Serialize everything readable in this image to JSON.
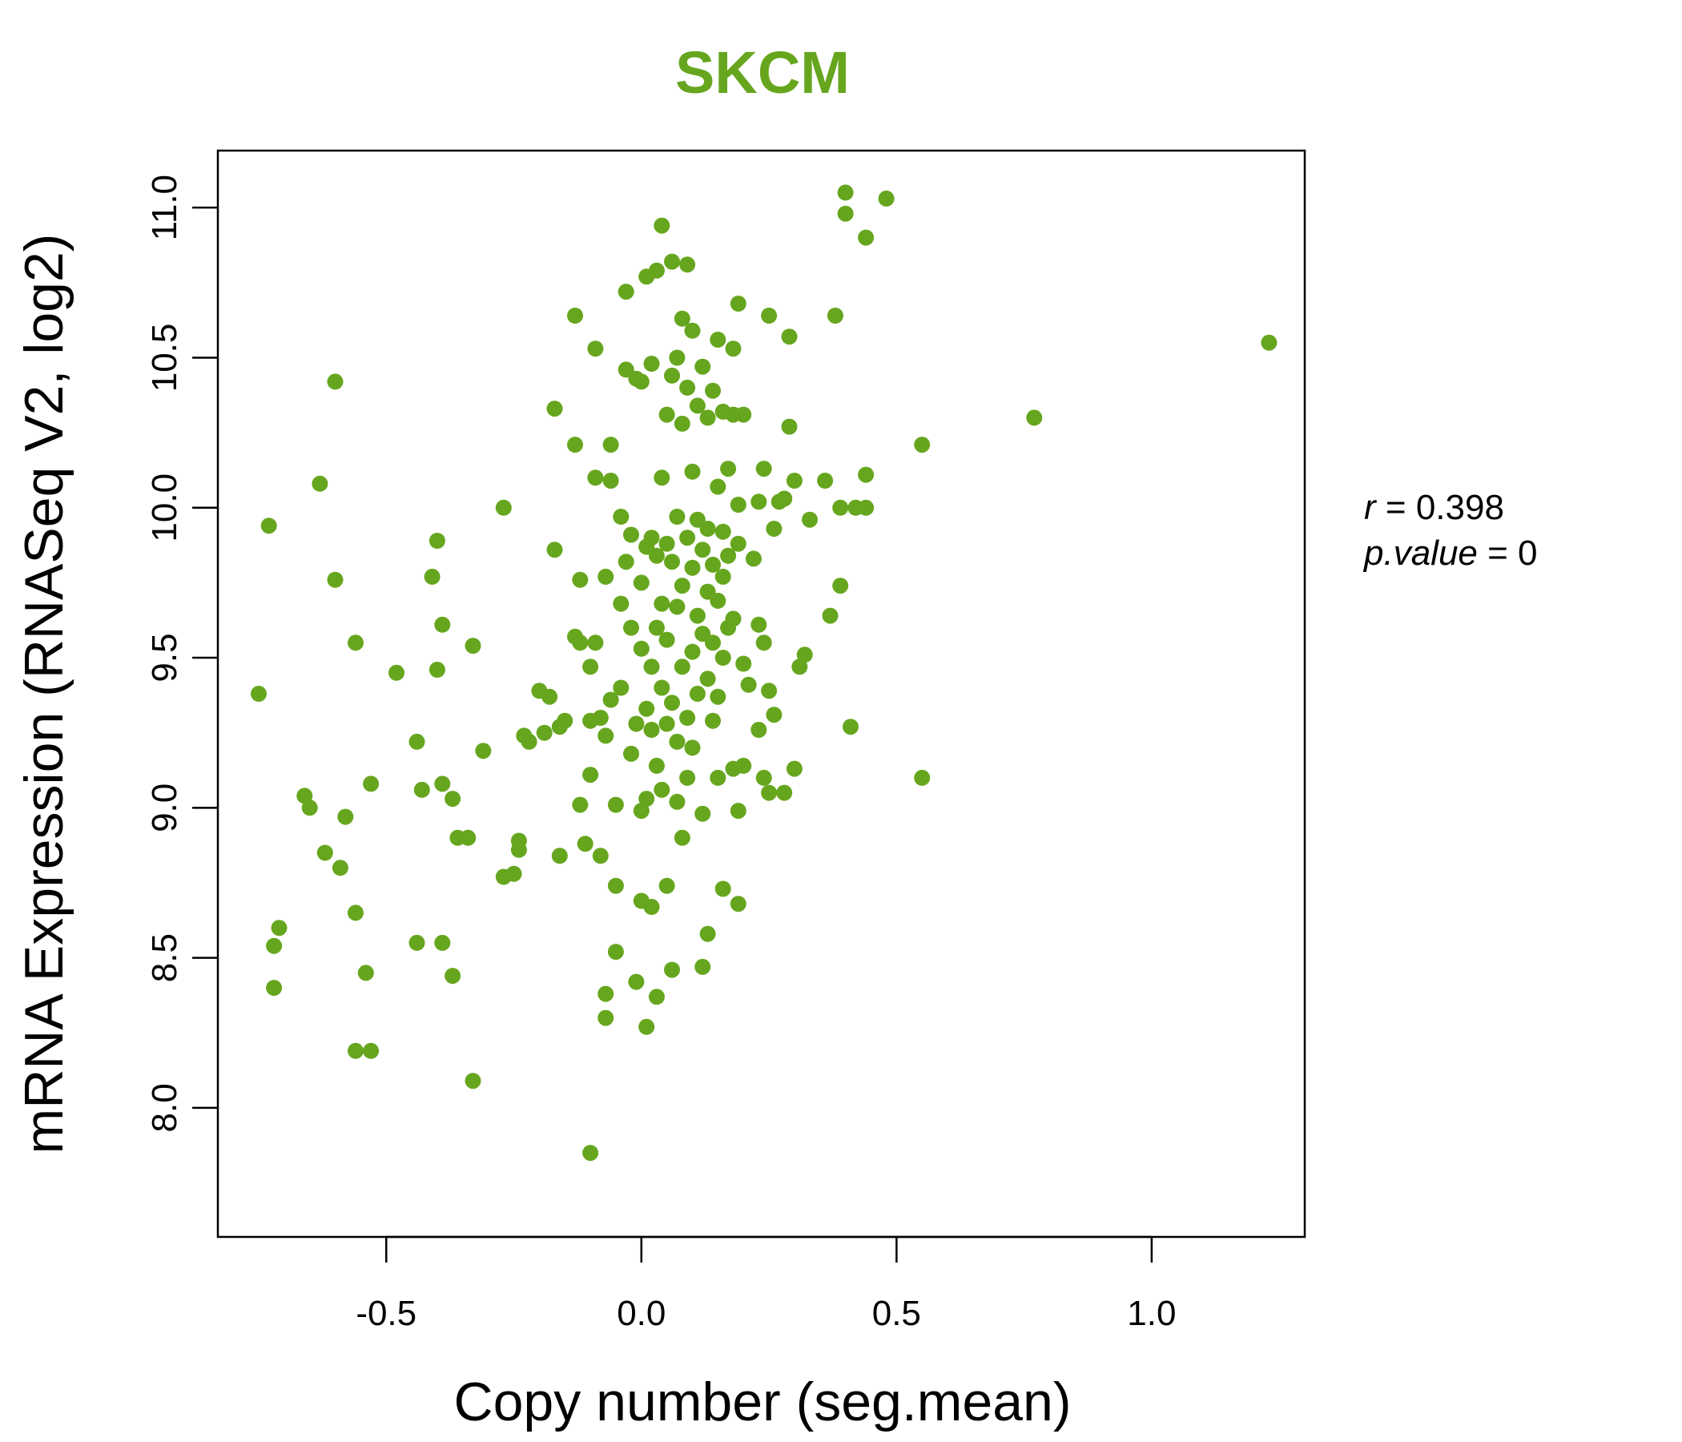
{
  "chart_data": {
    "type": "scatter",
    "title": "SKCM",
    "xlabel": "Copy number (seg.mean)",
    "ylabel": "mRNA Expression (RNASeq V2, log2)",
    "xlim": [
      -0.83,
      1.3
    ],
    "ylim": [
      7.57,
      11.19
    ],
    "x_ticks": [
      -0.5,
      0.0,
      0.5,
      1.0
    ],
    "x_tick_labels": [
      "-0.5",
      "0.0",
      "0.5",
      "1.0"
    ],
    "y_ticks": [
      8.0,
      8.5,
      9.0,
      9.5,
      10.0,
      10.5,
      11.0
    ],
    "y_tick_labels": [
      "8.0",
      "8.5",
      "9.0",
      "9.5",
      "10.0",
      "10.5",
      "11.0"
    ],
    "grid": false,
    "annotations": {
      "r_label": "r",
      "r_value": "0.398",
      "p_label": "p.value",
      "p_value": "0"
    },
    "colors": {
      "title": "#66a61e",
      "points": "#66a61e",
      "axis": "#000000"
    },
    "points": [
      [
        -0.75,
        9.38
      ],
      [
        -0.73,
        9.94
      ],
      [
        -0.72,
        8.54
      ],
      [
        -0.72,
        8.4
      ],
      [
        -0.71,
        8.6
      ],
      [
        -0.66,
        9.04
      ],
      [
        -0.65,
        9.0
      ],
      [
        -0.63,
        10.08
      ],
      [
        -0.62,
        8.85
      ],
      [
        -0.6,
        10.42
      ],
      [
        -0.6,
        9.76
      ],
      [
        -0.59,
        8.8
      ],
      [
        -0.58,
        8.97
      ],
      [
        -0.56,
        8.65
      ],
      [
        -0.56,
        9.55
      ],
      [
        -0.56,
        8.19
      ],
      [
        -0.54,
        8.45
      ],
      [
        -0.53,
        8.19
      ],
      [
        -0.53,
        9.08
      ],
      [
        -0.48,
        9.45
      ],
      [
        -0.44,
        9.22
      ],
      [
        -0.44,
        8.55
      ],
      [
        -0.43,
        9.06
      ],
      [
        -0.41,
        9.77
      ],
      [
        -0.4,
        9.89
      ],
      [
        -0.4,
        9.46
      ],
      [
        -0.39,
        9.61
      ],
      [
        -0.39,
        9.08
      ],
      [
        -0.39,
        8.55
      ],
      [
        -0.37,
        8.44
      ],
      [
        -0.37,
        9.03
      ],
      [
        -0.36,
        8.9
      ],
      [
        -0.34,
        8.9
      ],
      [
        -0.33,
        9.54
      ],
      [
        -0.33,
        8.09
      ],
      [
        -0.31,
        9.19
      ],
      [
        -0.27,
        10.0
      ],
      [
        -0.27,
        8.77
      ],
      [
        -0.25,
        8.78
      ],
      [
        -0.24,
        8.86
      ],
      [
        -0.24,
        8.89
      ],
      [
        -0.23,
        9.24
      ],
      [
        -0.22,
        9.22
      ],
      [
        -0.2,
        9.39
      ],
      [
        -0.19,
        9.25
      ],
      [
        -0.18,
        9.37
      ],
      [
        -0.17,
        10.33
      ],
      [
        -0.17,
        9.86
      ],
      [
        -0.16,
        9.27
      ],
      [
        -0.16,
        8.84
      ],
      [
        -0.15,
        9.29
      ],
      [
        -0.13,
        10.21
      ],
      [
        -0.13,
        10.64
      ],
      [
        -0.13,
        9.57
      ],
      [
        -0.12,
        9.01
      ],
      [
        -0.12,
        9.55
      ],
      [
        -0.12,
        9.76
      ],
      [
        -0.11,
        8.88
      ],
      [
        -0.1,
        9.11
      ],
      [
        -0.1,
        9.47
      ],
      [
        -0.1,
        9.29
      ],
      [
        -0.1,
        7.85
      ],
      [
        -0.09,
        10.53
      ],
      [
        -0.09,
        10.1
      ],
      [
        -0.09,
        9.55
      ],
      [
        -0.08,
        9.3
      ],
      [
        -0.08,
        8.84
      ],
      [
        -0.07,
        9.77
      ],
      [
        -0.07,
        9.24
      ],
      [
        -0.07,
        8.38
      ],
      [
        -0.07,
        8.3
      ],
      [
        -0.06,
        10.09
      ],
      [
        -0.06,
        10.21
      ],
      [
        -0.06,
        9.36
      ],
      [
        -0.05,
        9.01
      ],
      [
        -0.05,
        8.74
      ],
      [
        -0.05,
        8.52
      ],
      [
        -0.04,
        9.97
      ],
      [
        -0.04,
        9.68
      ],
      [
        -0.04,
        9.4
      ],
      [
        -0.03,
        10.46
      ],
      [
        -0.03,
        10.72
      ],
      [
        -0.03,
        9.82
      ],
      [
        -0.02,
        9.6
      ],
      [
        -0.02,
        9.91
      ],
      [
        -0.02,
        9.18
      ],
      [
        -0.01,
        10.43
      ],
      [
        -0.01,
        9.28
      ],
      [
        -0.01,
        8.42
      ],
      [
        0.0,
        10.42
      ],
      [
        0.0,
        9.75
      ],
      [
        0.0,
        9.53
      ],
      [
        0.0,
        8.99
      ],
      [
        0.0,
        8.69
      ],
      [
        0.01,
        10.77
      ],
      [
        0.01,
        9.87
      ],
      [
        0.01,
        9.33
      ],
      [
        0.01,
        9.03
      ],
      [
        0.01,
        8.27
      ],
      [
        0.02,
        10.48
      ],
      [
        0.02,
        9.9
      ],
      [
        0.02,
        9.47
      ],
      [
        0.02,
        9.26
      ],
      [
        0.02,
        8.67
      ],
      [
        0.03,
        10.79
      ],
      [
        0.03,
        9.84
      ],
      [
        0.03,
        9.6
      ],
      [
        0.03,
        9.14
      ],
      [
        0.03,
        8.37
      ],
      [
        0.04,
        10.94
      ],
      [
        0.04,
        10.1
      ],
      [
        0.04,
        9.68
      ],
      [
        0.04,
        9.4
      ],
      [
        0.04,
        9.06
      ],
      [
        0.05,
        10.31
      ],
      [
        0.05,
        9.88
      ],
      [
        0.05,
        9.56
      ],
      [
        0.05,
        9.28
      ],
      [
        0.05,
        8.74
      ],
      [
        0.06,
        10.82
      ],
      [
        0.06,
        10.44
      ],
      [
        0.06,
        9.82
      ],
      [
        0.06,
        9.35
      ],
      [
        0.06,
        8.46
      ],
      [
        0.07,
        10.5
      ],
      [
        0.07,
        9.97
      ],
      [
        0.07,
        9.67
      ],
      [
        0.07,
        9.22
      ],
      [
        0.07,
        9.02
      ],
      [
        0.08,
        10.63
      ],
      [
        0.08,
        10.28
      ],
      [
        0.08,
        9.74
      ],
      [
        0.08,
        9.47
      ],
      [
        0.08,
        8.9
      ],
      [
        0.09,
        10.81
      ],
      [
        0.09,
        10.4
      ],
      [
        0.09,
        9.9
      ],
      [
        0.09,
        9.3
      ],
      [
        0.09,
        9.1
      ],
      [
        0.1,
        10.59
      ],
      [
        0.1,
        10.12
      ],
      [
        0.1,
        9.8
      ],
      [
        0.1,
        9.52
      ],
      [
        0.1,
        9.2
      ],
      [
        0.11,
        10.34
      ],
      [
        0.11,
        9.96
      ],
      [
        0.11,
        9.64
      ],
      [
        0.11,
        9.38
      ],
      [
        0.12,
        10.47
      ],
      [
        0.12,
        9.86
      ],
      [
        0.12,
        9.58
      ],
      [
        0.12,
        8.98
      ],
      [
        0.12,
        8.47
      ],
      [
        0.13,
        10.3
      ],
      [
        0.13,
        9.93
      ],
      [
        0.13,
        9.72
      ],
      [
        0.13,
        9.43
      ],
      [
        0.13,
        8.58
      ],
      [
        0.14,
        10.39
      ],
      [
        0.14,
        9.81
      ],
      [
        0.14,
        9.55
      ],
      [
        0.14,
        9.29
      ],
      [
        0.15,
        10.56
      ],
      [
        0.15,
        10.07
      ],
      [
        0.15,
        9.69
      ],
      [
        0.15,
        9.37
      ],
      [
        0.15,
        9.1
      ],
      [
        0.16,
        10.32
      ],
      [
        0.16,
        9.92
      ],
      [
        0.16,
        9.77
      ],
      [
        0.16,
        9.5
      ],
      [
        0.16,
        8.73
      ],
      [
        0.17,
        10.13
      ],
      [
        0.17,
        9.84
      ],
      [
        0.17,
        9.6
      ],
      [
        0.18,
        10.53
      ],
      [
        0.18,
        10.31
      ],
      [
        0.18,
        9.63
      ],
      [
        0.18,
        9.13
      ],
      [
        0.19,
        10.68
      ],
      [
        0.19,
        10.01
      ],
      [
        0.19,
        9.88
      ],
      [
        0.19,
        8.99
      ],
      [
        0.19,
        8.68
      ],
      [
        0.2,
        10.31
      ],
      [
        0.2,
        9.48
      ],
      [
        0.2,
        9.14
      ],
      [
        0.21,
        9.41
      ],
      [
        0.22,
        9.83
      ],
      [
        0.23,
        10.02
      ],
      [
        0.23,
        9.61
      ],
      [
        0.23,
        9.26
      ],
      [
        0.24,
        10.13
      ],
      [
        0.24,
        9.55
      ],
      [
        0.24,
        9.1
      ],
      [
        0.25,
        10.64
      ],
      [
        0.25,
        9.39
      ],
      [
        0.25,
        9.05
      ],
      [
        0.26,
        9.93
      ],
      [
        0.26,
        9.31
      ],
      [
        0.27,
        10.02
      ],
      [
        0.28,
        10.03
      ],
      [
        0.28,
        9.05
      ],
      [
        0.29,
        10.57
      ],
      [
        0.29,
        10.27
      ],
      [
        0.3,
        10.09
      ],
      [
        0.3,
        9.13
      ],
      [
        0.31,
        9.47
      ],
      [
        0.32,
        9.51
      ],
      [
        0.33,
        9.96
      ],
      [
        0.36,
        10.09
      ],
      [
        0.37,
        9.64
      ],
      [
        0.38,
        10.64
      ],
      [
        0.39,
        9.74
      ],
      [
        0.39,
        10.0
      ],
      [
        0.4,
        11.05
      ],
      [
        0.4,
        10.98
      ],
      [
        0.41,
        9.27
      ],
      [
        0.42,
        10.0
      ],
      [
        0.44,
        10.0
      ],
      [
        0.44,
        10.9
      ],
      [
        0.44,
        10.11
      ],
      [
        0.48,
        11.03
      ],
      [
        0.55,
        10.21
      ],
      [
        0.55,
        9.1
      ],
      [
        0.77,
        10.3
      ],
      [
        1.23,
        10.55
      ]
    ]
  }
}
